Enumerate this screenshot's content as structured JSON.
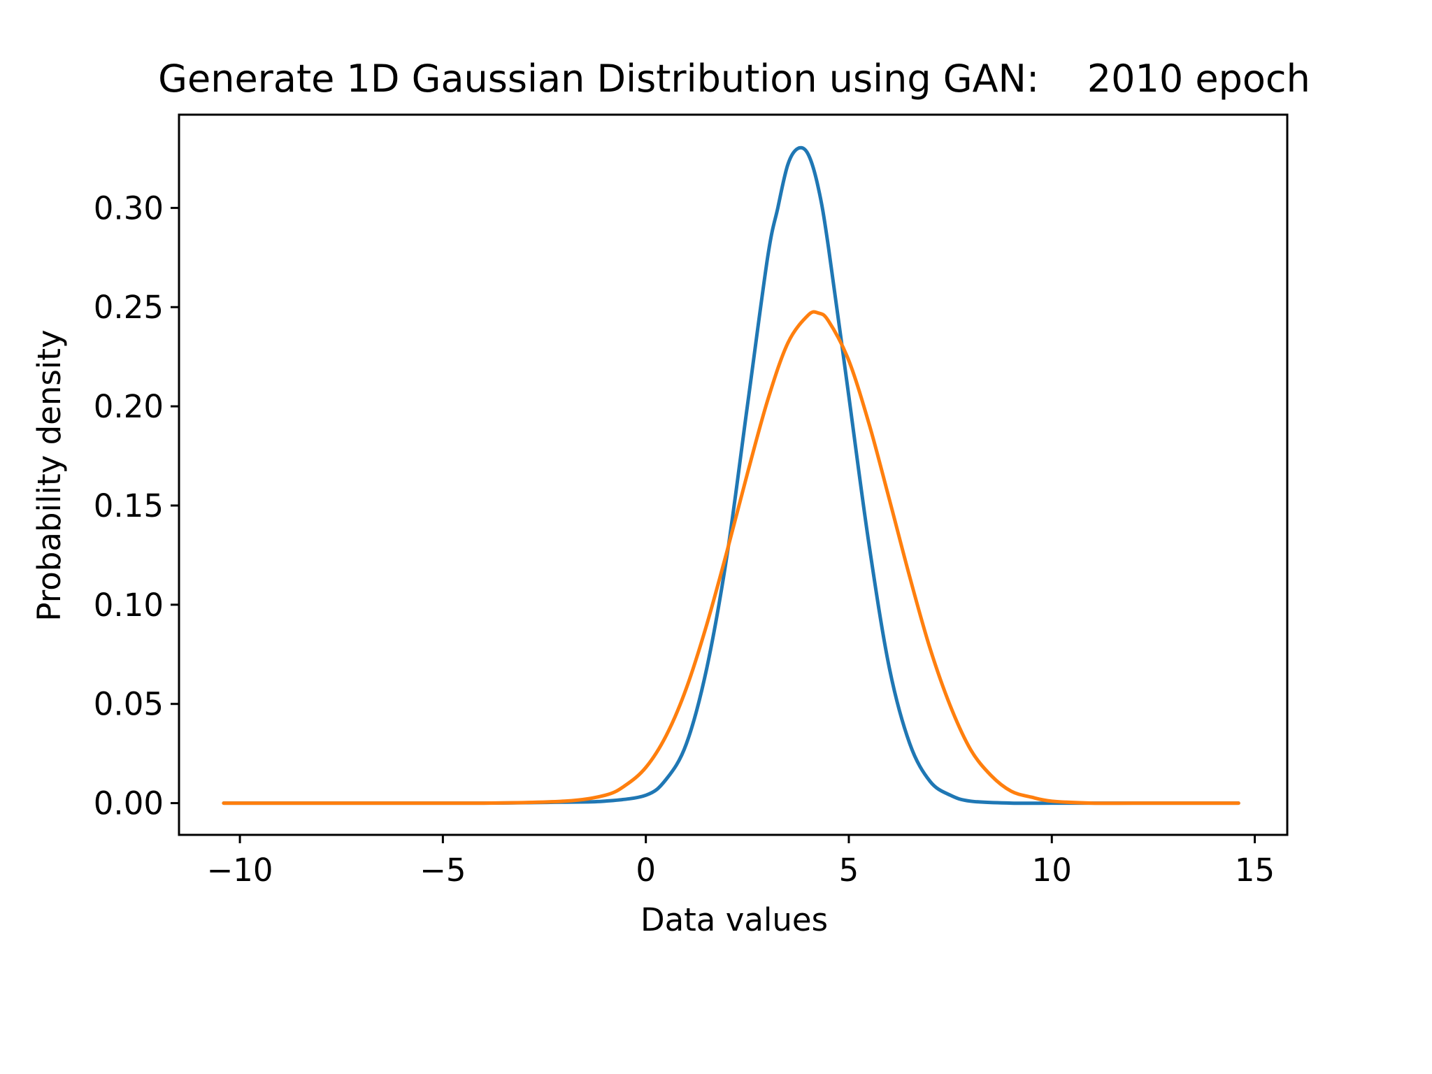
{
  "chart_data": {
    "type": "line",
    "title": "Generate 1D Gaussian Distribution using GAN:    2010 epoch",
    "xlabel": "Data values",
    "ylabel": "Probability density",
    "xlim": [
      -11.5,
      15.8
    ],
    "ylim": [
      -0.016,
      0.347
    ],
    "x_ticks": [
      -10,
      -5,
      0,
      5,
      10,
      15
    ],
    "x_tick_labels": [
      "−10",
      "−5",
      "0",
      "5",
      "10",
      "15"
    ],
    "y_ticks": [
      0.0,
      0.05,
      0.1,
      0.15,
      0.2,
      0.25,
      0.3
    ],
    "y_tick_labels": [
      "0.00",
      "0.05",
      "0.10",
      "0.15",
      "0.20",
      "0.25",
      "0.30"
    ],
    "grid": false,
    "legend": "none",
    "series": [
      {
        "color": "#1f77b4",
        "x": [
          -10.4,
          -7,
          -4,
          -2,
          -1,
          0,
          0.5,
          1,
          1.5,
          2,
          2.5,
          3,
          3.25,
          3.5,
          3.75,
          4,
          4.25,
          4.5,
          5,
          5.5,
          6,
          6.5,
          7,
          7.5,
          8,
          9,
          10,
          12,
          14.6
        ],
        "y": [
          0.0,
          0.0,
          0.0,
          0.0005,
          0.001,
          0.004,
          0.012,
          0.03,
          0.068,
          0.125,
          0.2,
          0.275,
          0.3,
          0.322,
          0.33,
          0.327,
          0.31,
          0.28,
          0.205,
          0.13,
          0.068,
          0.03,
          0.011,
          0.004,
          0.001,
          0.0,
          0.0,
          0.0,
          0.0
        ]
      },
      {
        "color": "#ff7f0e",
        "x": [
          -10.4,
          -7,
          -4,
          -2,
          -1,
          -0.5,
          0,
          0.5,
          1,
          1.5,
          2,
          2.5,
          3,
          3.5,
          4,
          4.25,
          4.5,
          5,
          5.5,
          6,
          6.5,
          7,
          7.5,
          8,
          8.5,
          9,
          9.5,
          10,
          11,
          12,
          14.6
        ],
        "y": [
          0.0,
          0.0,
          0.0,
          0.001,
          0.004,
          0.009,
          0.018,
          0.034,
          0.058,
          0.09,
          0.127,
          0.166,
          0.203,
          0.232,
          0.246,
          0.247,
          0.243,
          0.223,
          0.191,
          0.153,
          0.114,
          0.078,
          0.049,
          0.027,
          0.014,
          0.006,
          0.003,
          0.001,
          0.0,
          0.0,
          0.0
        ]
      }
    ]
  }
}
